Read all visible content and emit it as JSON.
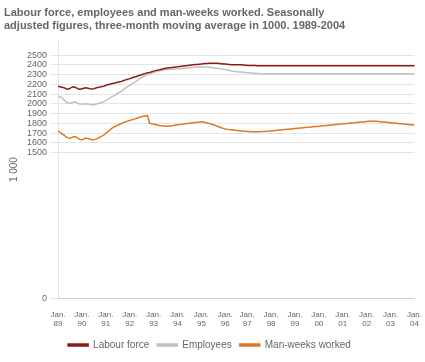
{
  "chart_data": {
    "type": "line",
    "title": "Labour force, employees and man-weeks worked. Seasonally\nadjusted figures, three-month moving average in 1000. 1989-2004",
    "y_label": "1 000",
    "ylim": [
      0,
      2650
    ],
    "yticks": [
      0,
      1500,
      1600,
      1700,
      1800,
      1900,
      2000,
      2100,
      2200,
      2300,
      2400,
      2500
    ],
    "grid": true,
    "legend": "bottom",
    "categories": [
      "Jan.\n89",
      null,
      null,
      null,
      null,
      null,
      null,
      null,
      null,
      null,
      null,
      null,
      "Jan.\n90",
      null,
      null,
      null,
      null,
      null,
      null,
      null,
      null,
      null,
      null,
      null,
      "Jan.\n91",
      null,
      null,
      null,
      null,
      null,
      null,
      null,
      null,
      null,
      null,
      null,
      "Jan.\n92",
      null,
      null,
      null,
      null,
      null,
      null,
      null,
      null,
      null,
      null,
      null,
      "Jan.\n93",
      null,
      null,
      null,
      null,
      null,
      null,
      null,
      null,
      null,
      null,
      null,
      "Jan.\n94",
      null,
      null,
      null,
      null,
      null,
      null,
      null,
      null,
      null,
      null,
      null,
      "Jan.\n95",
      null,
      null,
      null,
      null,
      null,
      null,
      null,
      null,
      null,
      null,
      null,
      "Jan.\n96",
      null,
      null,
      null,
      null,
      null,
      null,
      null,
      null,
      null,
      null,
      "Jan.\n97",
      null,
      null,
      null,
      null,
      null,
      null,
      null,
      null,
      null,
      null,
      null,
      "Jan.\n98",
      null,
      null,
      null,
      null,
      null,
      null,
      null,
      null,
      null,
      null,
      null,
      "Jan.\n99",
      null,
      null,
      null,
      null,
      null,
      null,
      null,
      null,
      null,
      null,
      null,
      "Jan.\n00",
      null,
      null,
      null,
      null,
      null,
      null,
      null,
      null,
      null,
      null,
      null,
      "Jan.\n01",
      null,
      null,
      null,
      null,
      null,
      null,
      null,
      null,
      null,
      null,
      null,
      "Jan.\n02",
      null,
      null,
      null,
      null,
      null,
      null,
      null,
      null,
      null,
      null,
      null,
      "Jan.\n03",
      null,
      null,
      null,
      null,
      null,
      null,
      null,
      null,
      null,
      null,
      null,
      "Jan.\n04"
    ],
    "series": [
      {
        "name": "Labour force",
        "color": "#8b1a1a",
        "values": [
          2180,
          2175,
          2170,
          2165,
          2155,
          2150,
          2158,
          2170,
          2175,
          2165,
          2155,
          2150,
          2155,
          2160,
          2165,
          2160,
          2155,
          2152,
          2155,
          2162,
          2168,
          2172,
          2178,
          2180,
          2190,
          2195,
          2200,
          2205,
          2210,
          2215,
          2220,
          2225,
          2230,
          2238,
          2245,
          2252,
          2258,
          2265,
          2272,
          2278,
          2285,
          2292,
          2298,
          2305,
          2312,
          2318,
          2322,
          2328,
          2335,
          2340,
          2345,
          2350,
          2355,
          2360,
          2365,
          2368,
          2370,
          2372,
          2375,
          2378,
          2380,
          2383,
          2385,
          2388,
          2390,
          2392,
          2395,
          2398,
          2400,
          2402,
          2404,
          2406,
          2408,
          2410,
          2412,
          2414,
          2415,
          2416,
          2416,
          2416,
          2415,
          2413,
          2411,
          2409,
          2407,
          2405,
          2403,
          2401,
          2400,
          2400,
          2400,
          2400,
          2400,
          2398,
          2396,
          2394,
          2393,
          2392,
          2392,
          2392,
          2391,
          2390,
          2389,
          2389,
          2389,
          2389,
          2389,
          2390,
          2390,
          2390,
          2390,
          2390,
          2390,
          2390,
          2390,
          2390,
          2390,
          2390,
          2390,
          2390,
          2390,
          2390,
          2390,
          2390,
          2390,
          2390,
          2390,
          2390,
          2390,
          2390,
          2390,
          2390,
          2390,
          2390,
          2390,
          2390,
          2390,
          2390,
          2390,
          2390,
          2390,
          2390,
          2390,
          2390,
          2390,
          2390,
          2390,
          2390,
          2390,
          2390,
          2390,
          2390,
          2390,
          2390,
          2390,
          2390,
          2390,
          2390,
          2390,
          2390,
          2390,
          2390,
          2390,
          2390,
          2390,
          2390,
          2390,
          2390,
          2390,
          2390,
          2390,
          2390,
          2390,
          2390,
          2390,
          2390,
          2390,
          2390,
          2390,
          2390
        ]
      },
      {
        "name": "Employees",
        "color": "#c0c0c0",
        "values": [
          2080,
          2070,
          2060,
          2040,
          2020,
          2010,
          2005,
          2010,
          2020,
          2015,
          2005,
          1998,
          1995,
          1998,
          2000,
          1998,
          1994,
          1990,
          1990,
          1995,
          2002,
          2008,
          2015,
          2022,
          2035,
          2045,
          2058,
          2070,
          2082,
          2095,
          2108,
          2120,
          2133,
          2148,
          2162,
          2175,
          2188,
          2202,
          2215,
          2228,
          2242,
          2255,
          2268,
          2280,
          2292,
          2300,
          2308,
          2315,
          2322,
          2328,
          2333,
          2338,
          2342,
          2346,
          2350,
          2352,
          2354,
          2355,
          2356,
          2357,
          2358,
          2360,
          2362,
          2364,
          2366,
          2368,
          2370,
          2372,
          2374,
          2376,
          2377,
          2378,
          2378,
          2378,
          2378,
          2376,
          2374,
          2372,
          2370,
          2368,
          2365,
          2362,
          2358,
          2354,
          2350,
          2346,
          2342,
          2338,
          2334,
          2330,
          2328,
          2326,
          2325,
          2323,
          2321,
          2319,
          2317,
          2315,
          2313,
          2312,
          2311,
          2310,
          2309,
          2308,
          2308,
          2308,
          2308,
          2308,
          2308,
          2308,
          2308,
          2308,
          2308,
          2308,
          2308,
          2308,
          2308,
          2308,
          2308,
          2308,
          2308,
          2308,
          2308,
          2308,
          2308,
          2308,
          2308,
          2308,
          2308,
          2308,
          2308,
          2308,
          2308,
          2308,
          2308,
          2308,
          2308,
          2308,
          2308,
          2308,
          2308,
          2308,
          2308,
          2308,
          2308,
          2308,
          2308,
          2308,
          2308,
          2308,
          2308,
          2308,
          2308,
          2308,
          2308,
          2308,
          2308,
          2308,
          2308,
          2308,
          2308,
          2308,
          2308,
          2308,
          2308,
          2308,
          2308,
          2308,
          2308,
          2308,
          2308,
          2308,
          2308,
          2308,
          2308,
          2308,
          2308,
          2308,
          2308,
          2308
        ]
      },
      {
        "name": "Man-weeks worked",
        "color": "#e07820",
        "values": [
          1720,
          1710,
          1690,
          1680,
          1660,
          1650,
          1645,
          1655,
          1665,
          1660,
          1645,
          1635,
          1630,
          1640,
          1648,
          1645,
          1638,
          1632,
          1630,
          1638,
          1648,
          1658,
          1668,
          1678,
          1700,
          1715,
          1730,
          1748,
          1760,
          1772,
          1780,
          1790,
          1800,
          1808,
          1815,
          1822,
          1828,
          1835,
          1842,
          1848,
          1855,
          1862,
          1868,
          1872,
          1875,
          1878,
          1800,
          1795,
          1792,
          1788,
          1782,
          1778,
          1775,
          1772,
          1770,
          1770,
          1772,
          1775,
          1778,
          1782,
          1785,
          1788,
          1790,
          1792,
          1795,
          1798,
          1800,
          1802,
          1805,
          1808,
          1810,
          1812,
          1815,
          1812,
          1808,
          1802,
          1798,
          1792,
          1785,
          1778,
          1770,
          1762,
          1755,
          1748,
          1742,
          1738,
          1735,
          1732,
          1730,
          1728,
          1726,
          1724,
          1722,
          1720,
          1718,
          1716,
          1715,
          1714,
          1714,
          1714,
          1714,
          1714,
          1715,
          1715,
          1716,
          1718,
          1720,
          1722,
          1724,
          1726,
          1728,
          1730,
          1732,
          1734,
          1736,
          1738,
          1740,
          1742,
          1744,
          1746,
          1748,
          1750,
          1752,
          1754,
          1756,
          1758,
          1760,
          1762,
          1764,
          1766,
          1768,
          1770,
          1772,
          1774,
          1776,
          1778,
          1780,
          1782,
          1784,
          1786,
          1788,
          1790,
          1792,
          1794,
          1796,
          1798,
          1800,
          1802,
          1804,
          1806,
          1808,
          1810,
          1812,
          1814,
          1816,
          1818,
          1820,
          1820,
          1820,
          1820,
          1820,
          1818,
          1816,
          1814,
          1812,
          1810,
          1808,
          1806,
          1804,
          1802,
          1800,
          1798,
          1796,
          1794,
          1792,
          1790,
          1788,
          1786,
          1784,
          1782
        ]
      }
    ]
  }
}
